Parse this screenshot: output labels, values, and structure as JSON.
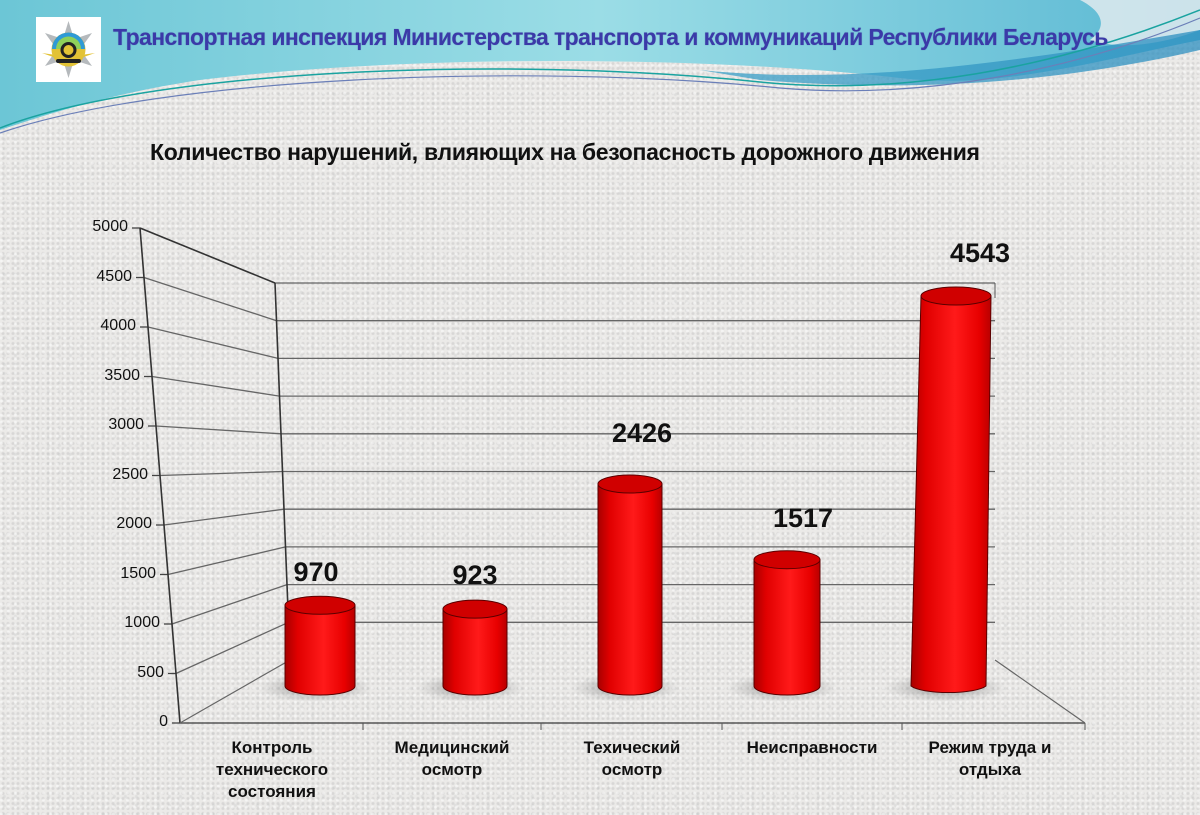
{
  "header": {
    "org_title": "Транспортная инспекция Министерства транспорта и коммуникаций Республики Беларусь",
    "logo": "ministry-emblem-icon"
  },
  "chart_data": {
    "type": "bar",
    "style": "3d-cylinder",
    "title": "Количество нарушений, влияющих на безопасность дорожного движения",
    "xlabel": "",
    "ylabel": "",
    "ylim": [
      0,
      5000
    ],
    "yticks": [
      "0",
      "500",
      "1000",
      "1500",
      "2000",
      "2500",
      "3000",
      "3500",
      "4000",
      "4500",
      "5000"
    ],
    "grid": true,
    "legend": "none",
    "categories": [
      "Контроль технического состояния",
      "Медицинский осмотр",
      "Техический осмотр",
      "Неисправности",
      "Режим труда и отдыха"
    ],
    "category_lines": [
      [
        "Контроль",
        "технического",
        "состояния"
      ],
      [
        "Медицинский",
        "осмотр"
      ],
      [
        "Техический",
        "осмотр"
      ],
      [
        "Неисправности"
      ],
      [
        "Режим труда и",
        "отдыха"
      ]
    ],
    "values": [
      970,
      923,
      2426,
      1517,
      4543
    ],
    "value_labels": [
      "970",
      "923",
      "2426",
      "1517",
      "4543"
    ],
    "bar_color": "#ff0000"
  },
  "colors": {
    "header_text": "#3b3aa8",
    "wave_light": "#7fd3df",
    "wave_dark": "#3aa7c6",
    "bar_red": "#ff1010",
    "bar_dark": "#b00000"
  }
}
